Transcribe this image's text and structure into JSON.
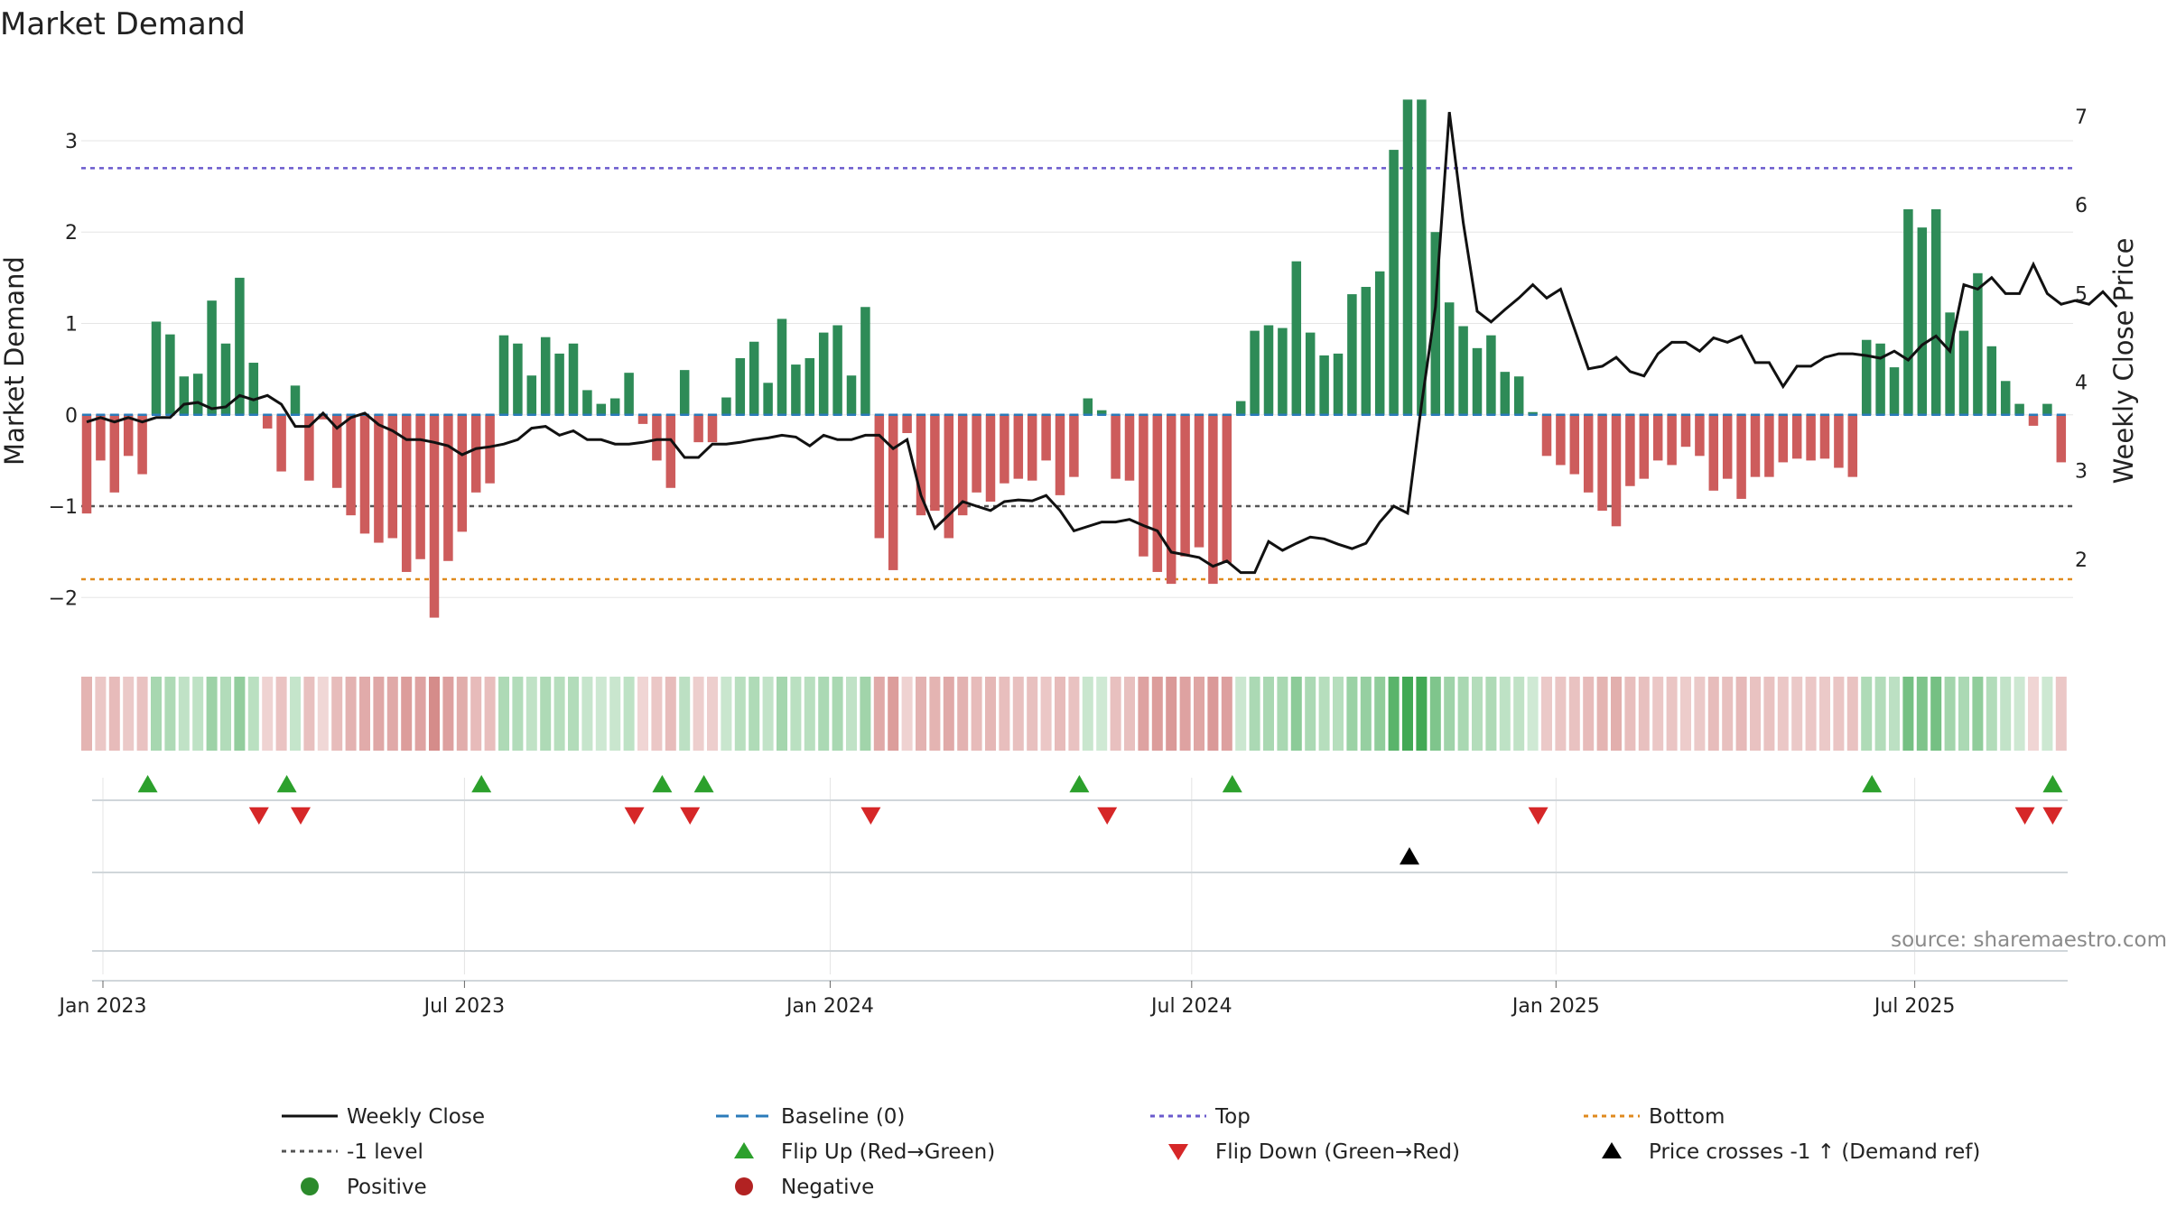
{
  "chart_data": {
    "type": "bar",
    "title": "Market Demand",
    "ylabel": "Market Demand",
    "y2label": "Weekly Close Price",
    "ylim": [
      -2.55,
      3.75
    ],
    "y2lim": [
      1.0,
      7.5
    ],
    "yticks": [
      -2,
      -1,
      0,
      1,
      2,
      3
    ],
    "y2ticks": [
      2,
      3,
      4,
      5,
      6,
      7
    ],
    "levels": {
      "top": 2.7,
      "minus1": -1.0,
      "bottom": -1.8,
      "baseline": 0
    },
    "x_ticks": [
      {
        "label": "Jan 2023",
        "week": 0
      },
      {
        "label": "Jul 2023",
        "week": 26
      },
      {
        "label": "Jan 2024",
        "week": 52.3
      },
      {
        "label": "Jul 2024",
        "week": 78.3
      },
      {
        "label": "Jan 2025",
        "week": 104.5
      },
      {
        "label": "Jul 2025",
        "week": 130.3
      }
    ],
    "demand": [
      -1.08,
      -0.5,
      -0.85,
      -0.45,
      -0.65,
      1.02,
      0.88,
      0.42,
      0.45,
      1.25,
      0.78,
      1.5,
      0.57,
      -0.15,
      -0.62,
      0.32,
      -0.72,
      -0.05,
      -0.8,
      -1.1,
      -1.3,
      -1.4,
      -1.35,
      -1.72,
      -1.58,
      -2.22,
      -1.6,
      -1.28,
      -0.85,
      -0.75,
      0.87,
      0.78,
      0.43,
      0.85,
      0.67,
      0.78,
      0.27,
      0.12,
      0.18,
      0.46,
      -0.1,
      -0.5,
      -0.8,
      0.49,
      -0.3,
      -0.3,
      0.19,
      0.62,
      0.8,
      0.35,
      1.05,
      0.55,
      0.62,
      0.9,
      0.98,
      0.43,
      1.18,
      -1.35,
      -1.7,
      -0.2,
      -1.1,
      -1.05,
      -1.35,
      -1.1,
      -0.85,
      -0.95,
      -0.75,
      -0.7,
      -0.72,
      -0.5,
      -0.88,
      -0.68,
      0.18,
      0.05,
      -0.7,
      -0.72,
      -1.55,
      -1.72,
      -1.85,
      -1.55,
      -1.45,
      -1.85,
      -1.62,
      0.15,
      0.92,
      0.98,
      0.95,
      1.68,
      0.9,
      0.65,
      0.67,
      1.32,
      1.4,
      1.57,
      2.9,
      3.45,
      3.45,
      2.0,
      1.23,
      0.97,
      0.73,
      0.87,
      0.47,
      0.42,
      0.03,
      -0.45,
      -0.55,
      -0.65,
      -0.85,
      -1.05,
      -1.22,
      -0.78,
      -0.7,
      -0.5,
      -0.55,
      -0.35,
      -0.45,
      -0.83,
      -0.7,
      -0.92,
      -0.68,
      -0.68,
      -0.52,
      -0.48,
      -0.5,
      -0.48,
      -0.58,
      -0.68,
      0.82,
      0.78,
      0.52,
      2.25,
      2.05,
      2.25,
      1.12,
      0.92,
      1.55,
      0.75,
      0.37,
      0.12,
      -0.12,
      0.12,
      -0.52
    ],
    "price": [
      3.55,
      3.6,
      3.55,
      3.6,
      3.55,
      3.6,
      3.6,
      3.75,
      3.77,
      3.7,
      3.72,
      3.85,
      3.8,
      3.85,
      3.75,
      3.5,
      3.5,
      3.65,
      3.48,
      3.6,
      3.65,
      3.52,
      3.45,
      3.35,
      3.35,
      3.32,
      3.28,
      3.18,
      3.25,
      3.27,
      3.3,
      3.35,
      3.48,
      3.5,
      3.4,
      3.45,
      3.35,
      3.35,
      3.3,
      3.3,
      3.32,
      3.35,
      3.35,
      3.15,
      3.15,
      3.3,
      3.3,
      3.32,
      3.35,
      3.37,
      3.4,
      3.38,
      3.28,
      3.4,
      3.35,
      3.35,
      3.4,
      3.4,
      3.25,
      3.35,
      2.72,
      2.35,
      2.5,
      2.65,
      2.6,
      2.55,
      2.65,
      2.67,
      2.66,
      2.72,
      2.55,
      2.32,
      2.37,
      2.42,
      2.42,
      2.45,
      2.38,
      2.32,
      2.08,
      2.05,
      2.02,
      1.92,
      1.98,
      1.85,
      1.85,
      2.2,
      2.1,
      2.18,
      2.25,
      2.23,
      2.17,
      2.12,
      2.18,
      2.42,
      2.6,
      2.52,
      3.75,
      4.85,
      7.05,
      5.8,
      4.8,
      4.68,
      4.82,
      4.95,
      5.1,
      4.95,
      5.05,
      4.6,
      4.15,
      4.18,
      4.28,
      4.12,
      4.07,
      4.32,
      4.45,
      4.45,
      4.35,
      4.5,
      4.45,
      4.52,
      4.22,
      4.22,
      3.95,
      4.18,
      4.18,
      4.28,
      4.32,
      4.32,
      4.3,
      4.27,
      4.35,
      4.25,
      4.42,
      4.52,
      4.35,
      5.1,
      5.05,
      5.18,
      5.0,
      5.0,
      5.33,
      5.0,
      4.88,
      4.92,
      4.88,
      5.02,
      4.85
    ],
    "flip_up_weeks": [
      4,
      14,
      28,
      41,
      44,
      71,
      82,
      128,
      141
    ],
    "flip_down_weeks": [
      12,
      15,
      39,
      43,
      56,
      73,
      104,
      139,
      141
    ],
    "price_cross_weeks": [
      95
    ],
    "legend": [
      {
        "label": "Weekly Close",
        "symbol": "line-solid",
        "color": "#111111"
      },
      {
        "label": "Baseline (0)",
        "symbol": "line-dash",
        "color": "#2b7bba"
      },
      {
        "label": "Top",
        "symbol": "line-dot",
        "color": "#6a5acd"
      },
      {
        "label": "Bottom",
        "symbol": "line-dot",
        "color": "#e08a1e"
      },
      {
        "label": "-1 level",
        "symbol": "line-dot",
        "color": "#555555"
      },
      {
        "label": "Flip Up (Red→Green)",
        "symbol": "triangle-up",
        "color": "#2ca02c"
      },
      {
        "label": "Flip Down (Green→Red)",
        "symbol": "triangle-down",
        "color": "#d62728"
      },
      {
        "label": "Price crosses -1 ↑ (Demand ref)",
        "symbol": "triangle-up",
        "color": "#000000"
      },
      {
        "label": "Positive",
        "symbol": "circle",
        "color": "#2b8a2b"
      },
      {
        "label": "Negative",
        "symbol": "circle",
        "color": "#b22222"
      }
    ],
    "source": "source: sharemaestro.com"
  },
  "colors": {
    "positive_bar": "#2e8b57",
    "negative_bar": "#cd5c5c",
    "price_line": "#111111",
    "top_line": "#6a5acd",
    "bottom_line": "#e08a1e",
    "minus1_line": "#555555",
    "baseline": "#2b7bba",
    "heat_positive": "#2ea043",
    "heat_negative": "#c0504d",
    "flip_up": "#2ca02c",
    "flip_down": "#d62728",
    "cross_up": "#000000"
  }
}
